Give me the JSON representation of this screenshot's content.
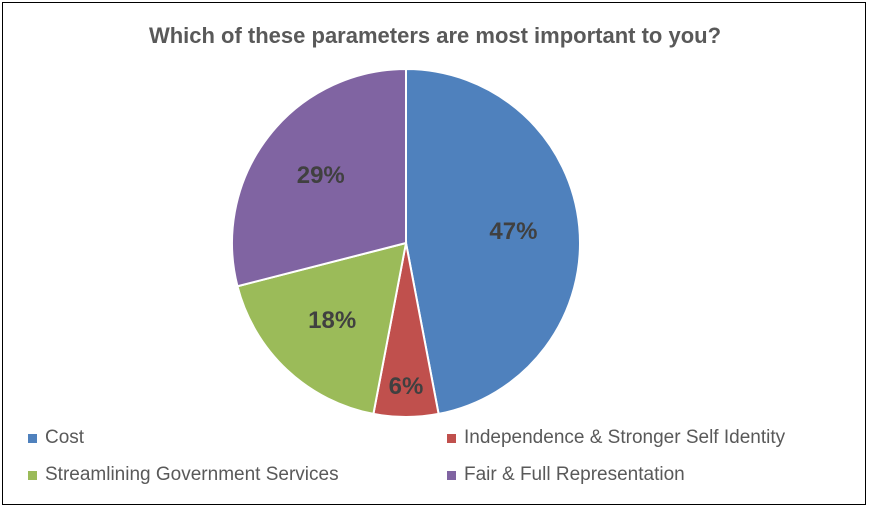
{
  "chart_data": {
    "type": "pie",
    "title": "Which of these parameters are most important to you?",
    "slices": [
      {
        "name": "Cost",
        "value": 47,
        "label": "47%",
        "color": "#4f81bd"
      },
      {
        "name": "Independence & Stronger Self Identity",
        "value": 6,
        "label": "6%",
        "color": "#c0504d"
      },
      {
        "name": "Streamlining Government Services",
        "value": 18,
        "label": "18%",
        "color": "#9bbb59"
      },
      {
        "name": "Fair & Full Representation",
        "value": 29,
        "label": "29%",
        "color": "#8064a2"
      }
    ],
    "legend_position": "bottom"
  }
}
